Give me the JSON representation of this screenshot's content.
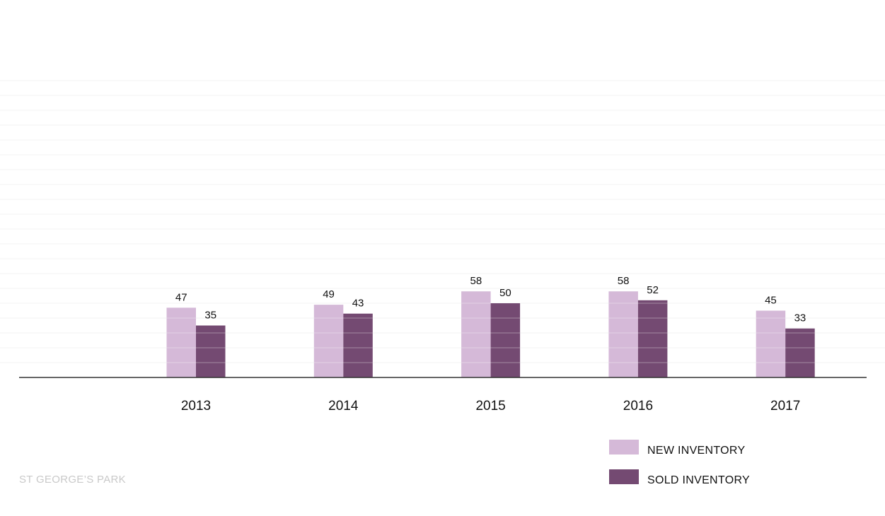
{
  "caption": "ST GEORGE’S PARK",
  "chart_data": {
    "type": "bar",
    "categories": [
      "2013",
      "2014",
      "2015",
      "2016",
      "2017"
    ],
    "series": [
      {
        "name": "NEW INVENTORY",
        "values": [
          47,
          49,
          58,
          58,
          45
        ],
        "color": "#d5b9d8"
      },
      {
        "name": "SOLD INVENTORY",
        "values": [
          35,
          43,
          50,
          52,
          33
        ],
        "color": "#744a72"
      }
    ],
    "ylim": [
      0,
      200
    ],
    "grid": true,
    "legend": "bottom-right",
    "title": "",
    "xlabel": "",
    "ylabel": ""
  }
}
